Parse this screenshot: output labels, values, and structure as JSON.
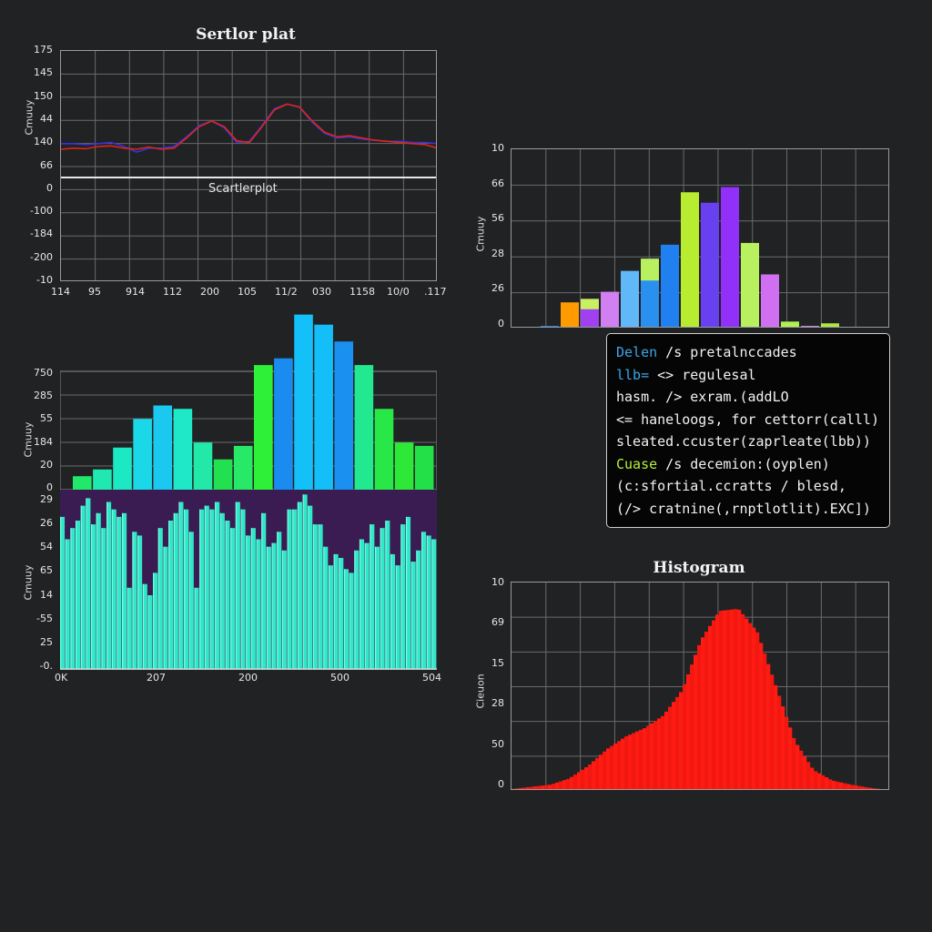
{
  "colors": {
    "background": "#202224",
    "grid": "#6a6a6a",
    "line_red": "#e0241a",
    "line_blue": "#3434d8",
    "hist_red": "#ff1a12",
    "cyan_bars": "#2ee8c8",
    "purple_bg": "#3a1c52",
    "code_blue": "#3aa6e8",
    "code_green": "#b8f03c"
  },
  "panels": {
    "line_plot": {
      "title": "Sertlor plat",
      "inner_label": "Scartlerplot",
      "ylabel": "Cmuuy",
      "yticks": [
        "175",
        "145",
        "150",
        "44",
        "140",
        "66",
        "0",
        "-100",
        "-184",
        "-200",
        "-10"
      ],
      "xticks": [
        "114",
        "95",
        "914",
        "112",
        "200",
        "105",
        "11/2",
        "030",
        "1158",
        "10/0",
        ".117"
      ]
    },
    "bar_plot_top": {
      "ylabel": "Cmuuy",
      "yticks": [
        "750",
        "285",
        "55",
        "184",
        "20",
        "0"
      ]
    },
    "bar_plot_bottom": {
      "ylabel": "Cmuuy",
      "yticks": [
        "29",
        "26",
        "54",
        "65",
        "14",
        "-55",
        "25",
        "-0."
      ],
      "xticks": [
        "0K",
        "207",
        "200",
        "500",
        "504"
      ]
    },
    "color_bars": {
      "ylabel": "Cmuuy",
      "yticks": [
        "10",
        "66",
        "56",
        "28",
        "26",
        "0"
      ]
    },
    "histogram": {
      "title": "Histogram",
      "ylabel": "Cieuon",
      "yticks": [
        "10",
        "69",
        "15",
        "28",
        "50",
        "0"
      ]
    }
  },
  "code_box": {
    "lines": [
      {
        "kw": "Delen",
        "rest": " /s pretalnccades",
        "kw_color": "blue"
      },
      {
        "kw": "llb=",
        "rest": " <> regulesal",
        "kw_color": "blue"
      },
      {
        "kw": "",
        "rest": "hasm. /> exram.(addLO",
        "kw_color": ""
      },
      {
        "kw": "",
        "rest": "<= haneloogs, for cettorr(calll)",
        "kw_color": ""
      },
      {
        "kw": "",
        "rest": "sleated.ccuster(zaprleate(lbb))",
        "kw_color": ""
      },
      {
        "kw": "Cuase",
        "rest": " /s decemion:(oyplen)",
        "kw_color": "green"
      },
      {
        "kw": "",
        "rest": "(c:sfortial.ccratts / blesd,",
        "kw_color": ""
      },
      {
        "kw": "",
        "rest": "(/> cratnine(,rnptlotlit).EXC])",
        "kw_color": ""
      }
    ]
  },
  "chart_data": [
    {
      "type": "line",
      "title": "Sertlor plat",
      "annotation": "Scartlerplot",
      "xlabel": "",
      "ylabel": "Cmuuy",
      "ytick_labels": [
        "175",
        "145",
        "150",
        "44",
        "140",
        "66",
        "0",
        "-100",
        "-184",
        "-200",
        "-10"
      ],
      "xtick_labels": [
        "114",
        "95",
        "914",
        "112",
        "200",
        "105",
        "11/2",
        "030",
        "1158",
        "10/0",
        ".117"
      ],
      "grid": true,
      "series": [
        {
          "name": "red",
          "color": "#e0241a",
          "y": [
            50,
            52,
            51,
            55,
            56,
            52,
            50,
            54,
            50,
            52,
            70,
            90,
            100,
            90,
            65,
            62,
            90,
            120,
            130,
            125,
            100,
            80,
            72,
            74,
            70,
            66,
            64,
            62,
            60,
            58,
            52
          ]
        },
        {
          "name": "blue",
          "color": "#3434d8",
          "y": [
            60,
            60,
            58,
            60,
            62,
            55,
            45,
            52,
            52,
            55,
            72,
            92,
            100,
            88,
            62,
            64,
            92,
            122,
            130,
            124,
            98,
            78,
            70,
            72,
            68,
            66,
            64,
            64,
            62,
            62,
            60
          ]
        }
      ]
    },
    {
      "type": "bar",
      "xlabel": "",
      "ylabel": "Cmuuy",
      "ytick_labels": [
        "750",
        "285",
        "55",
        "184",
        "20",
        "0"
      ],
      "grid": true,
      "values": [
        8,
        12,
        25,
        42,
        50,
        48,
        28,
        18,
        26,
        74,
        78,
        104,
        98,
        88,
        74,
        48,
        28,
        26
      ],
      "colors": [
        "#22e86a",
        "#1fe8b0",
        "#1de8c4",
        "#1ad8e8",
        "#1ac8f0",
        "#1ee8c8",
        "#22e8a8",
        "#22e050",
        "#28e868",
        "#2ef038",
        "#1a8cf0",
        "#14c0f8",
        "#14bef8",
        "#1a90f0",
        "#22e890",
        "#28e848",
        "#2ee838",
        "#24e048"
      ]
    },
    {
      "type": "bar",
      "xlabel": "",
      "ylabel": "Cmuuy",
      "ytick_labels": [
        "29",
        "26",
        "54",
        "65",
        "14",
        "-55",
        "25",
        "-0."
      ],
      "xtick_labels": [
        "0K",
        "207",
        "200",
        "500",
        "504"
      ],
      "grid": false,
      "values": [
        82,
        70,
        76,
        80,
        88,
        92,
        78,
        84,
        76,
        90,
        86,
        82,
        84,
        44,
        74,
        72,
        46,
        40,
        52,
        76,
        66,
        80,
        84,
        90,
        86,
        74,
        44,
        86,
        88,
        86,
        90,
        84,
        80,
        76,
        90,
        86,
        72,
        76,
        70,
        84,
        66,
        68,
        74,
        64,
        86,
        86,
        90,
        94,
        88,
        78,
        78,
        66,
        56,
        62,
        60,
        54,
        52,
        64,
        70,
        68,
        78,
        66,
        76,
        80,
        62,
        56,
        78,
        82,
        58,
        64,
        74,
        72,
        70
      ],
      "color": "#2ee8c8"
    },
    {
      "type": "bar",
      "xlabel": "",
      "ylabel": "Cmuuy",
      "ytick_labels": [
        "10",
        "66",
        "56",
        "28",
        "26",
        "0"
      ],
      "grid": true,
      "values": [
        1,
        1.5,
        15,
        17,
        21,
        33,
        40,
        48,
        78,
        72,
        81,
        49,
        31,
        4,
        1.5,
        3,
        0.5
      ],
      "colors": [
        "#f08060",
        "#2a8cf0",
        "#ff9a00",
        "#a040f0",
        "#d080f0",
        "#60b8f8",
        "#2a90f0",
        "#2080f0",
        "#b8ec30",
        "#6840f0",
        "#9030f8",
        "#b8f060",
        "#d070f0",
        "#b0f050",
        "#e090f0",
        "#b0e840",
        "#80c030"
      ],
      "stack_tops": {
        "3": "#c8f060",
        "4": "#d080f0",
        "6": "#b8f060"
      }
    },
    {
      "type": "area",
      "title": "Histogram",
      "xlabel": "",
      "ylabel": "Cieuon",
      "ytick_labels": [
        "10",
        "69",
        "15",
        "28",
        "50",
        "0"
      ],
      "grid": true,
      "x": [
        0,
        5,
        10,
        15,
        20,
        25,
        30,
        35,
        40,
        45,
        50,
        55,
        60,
        65,
        70,
        75,
        80,
        85,
        90,
        95,
        100
      ],
      "values": [
        1,
        2,
        3,
        6,
        12,
        20,
        26,
        30,
        36,
        48,
        72,
        86,
        87,
        76,
        50,
        24,
        10,
        5,
        3,
        1.5,
        0.5
      ],
      "color": "#ff1a12"
    }
  ]
}
